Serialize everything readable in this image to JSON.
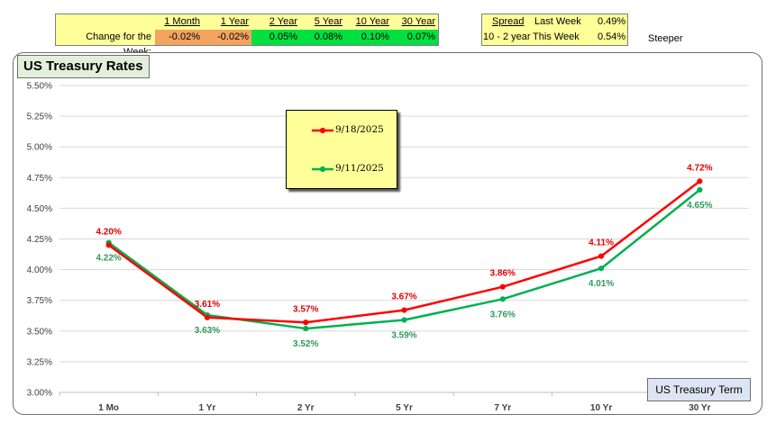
{
  "summary": {
    "row_label": "Change for the Week:",
    "headers": [
      "1 Month",
      "1 Year",
      "2 Year",
      "5 Year",
      "10 Year",
      "30 Year"
    ],
    "values": [
      "-0.02%",
      "-0.02%",
      "0.05%",
      "0.08%",
      "0.10%",
      "0.07%"
    ],
    "value_colors": [
      "#f4a460",
      "#f4a460",
      "#00e040",
      "#00e040",
      "#00e040",
      "#00e040"
    ]
  },
  "spread": {
    "header": "Spread",
    "last_week_label": "Last Week",
    "last_week_value": "0.49%",
    "row_label": "10 - 2 year",
    "this_week_label": "This Week",
    "this_week_value": "0.54%",
    "status": "Steeper"
  },
  "chart": {
    "title": "US Treasury Rates",
    "legend_button": "US Treasury Term"
  },
  "chart_data": {
    "type": "line",
    "categories": [
      "1 Mo",
      "1 Yr",
      "2 Yr",
      "5 Yr",
      "7 Yr",
      "10 Yr",
      "30 Yr"
    ],
    "ylim": [
      3.0,
      5.5
    ],
    "y_ticks": [
      "3.00%",
      "3.25%",
      "3.50%",
      "3.75%",
      "4.00%",
      "4.25%",
      "4.50%",
      "4.75%",
      "5.00%",
      "5.25%",
      "5.50%"
    ],
    "grid": true,
    "legend_position": "top-center",
    "series": [
      {
        "name": "9/18/2025",
        "color": "#ff0000",
        "label_color": "#e00000",
        "values": [
          4.2,
          3.61,
          3.57,
          3.67,
          3.86,
          4.11,
          4.72
        ],
        "labels": [
          "4.20%",
          "3.61%",
          "3.57%",
          "3.67%",
          "3.86%",
          "4.11%",
          "4.72%"
        ]
      },
      {
        "name": "9/11/2025",
        "color": "#00b050",
        "label_color": "#2e9a5a",
        "values": [
          4.22,
          3.63,
          3.52,
          3.59,
          3.76,
          4.01,
          4.65
        ],
        "labels": [
          "4.22%",
          "3.63%",
          "3.52%",
          "3.59%",
          "3.76%",
          "4.01%",
          "4.65%"
        ]
      }
    ]
  }
}
